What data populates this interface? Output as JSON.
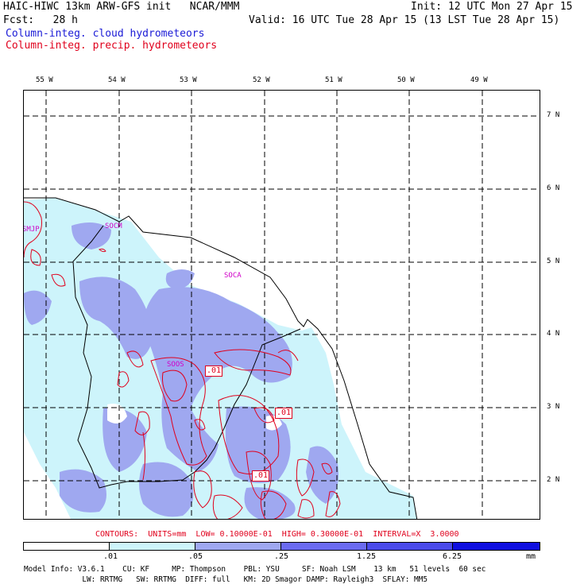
{
  "header": {
    "model": "HAIC-HIWC 13km ARW-GFS init   NCAR/MMM",
    "init": "Init: 12 UTC Mon 27 Apr 15",
    "fcst": "Fcst:   28 h",
    "valid": "Valid: 16 UTC Tue 28 Apr 15 (13 LST Tue 28 Apr 15)",
    "field1": "Column-integ. cloud hydrometeors",
    "field2": "Column-integ. precip. hydrometeors"
  },
  "colors": {
    "field1": "#1a1ad6",
    "field2": "#e0001c",
    "shade1": "#cdf4fb",
    "shade2": "#9fa8f0",
    "shade3": "#6b6bf0",
    "shade4": "#4b4bea",
    "shade5": "#1010e0"
  },
  "axes": {
    "lon_labels": [
      "55 W",
      "54 W",
      "53 W",
      "52 W",
      "51 W",
      "50 W",
      "49 W"
    ],
    "lat_labels": [
      "7 N",
      "6 N",
      "5 N",
      "4 N",
      "3 N",
      "2 N"
    ]
  },
  "stations": [
    "SMJP",
    "SOCM",
    "SOCA",
    "SOOS"
  ],
  "contour_labels": [
    ".01",
    ".01",
    ".01"
  ],
  "contours_info": "CONTOURS:  UNITS=mm  LOW= 0.10000E-01  HIGH= 0.30000E-01  INTERVAL=X  3.0000",
  "colorbar": {
    "ticks": [
      ".01",
      ".05",
      ".25",
      "1.25",
      "6.25"
    ],
    "unit": "mm"
  },
  "footer": {
    "line1": "Model Info: V3.6.1    CU: KF     MP: Thompson    PBL: YSU     SF: Noah LSM    13 km   51 levels  60 sec",
    "line2": "             LW: RRTMG   SW: RRTMG  DIFF: full   KM: 2D Smagor DAMP: Rayleigh3  SFLAY: MM5"
  }
}
